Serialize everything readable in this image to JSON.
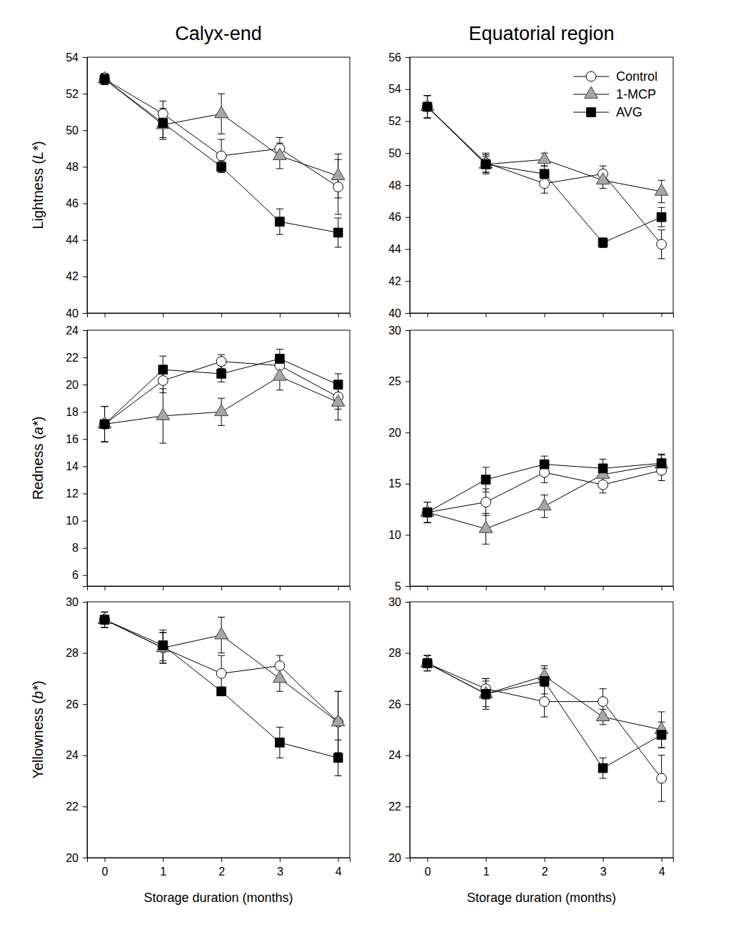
{
  "chart_data": [
    {
      "type": "line",
      "title": "Calyx-end",
      "y_label": "Lightness (L*)",
      "x": [
        0,
        1,
        2,
        3,
        4
      ],
      "xlim": [
        -0.3,
        4.2
      ],
      "xticks": [
        0,
        1,
        2,
        3,
        4
      ],
      "ylim": [
        40,
        54
      ],
      "yticks": [
        40,
        42,
        44,
        46,
        48,
        50,
        52,
        54
      ],
      "tick_labels": "y",
      "series": [
        {
          "name": "Control",
          "color": "#ffffff",
          "marker": "circle",
          "values": [
            52.8,
            50.9,
            48.6,
            49.0,
            46.9
          ],
          "errors": [
            0.3,
            0.7,
            0.9,
            0.6,
            1.5
          ]
        },
        {
          "name": "1-MCP",
          "color": "#a6a6a6",
          "marker": "triangle",
          "values": [
            52.8,
            50.3,
            50.9,
            48.6,
            47.5
          ],
          "errors": [
            0.3,
            0.8,
            1.1,
            0.7,
            1.2
          ]
        },
        {
          "name": "AVG",
          "color": "#000000",
          "marker": "square",
          "values": [
            52.8,
            50.4,
            48.0,
            45.0,
            44.4
          ],
          "errors": [
            0.3,
            0.8,
            0.3,
            0.7,
            0.8
          ]
        }
      ]
    },
    {
      "type": "line",
      "title": "Equatorial region",
      "legend": "upper right",
      "x": [
        0,
        1,
        2,
        3,
        4
      ],
      "xlim": [
        -0.3,
        4.2
      ],
      "xticks": [
        0,
        1,
        2,
        3,
        4
      ],
      "ylim": [
        40,
        56
      ],
      "yticks": [
        40,
        42,
        44,
        46,
        48,
        50,
        52,
        54,
        56
      ],
      "tick_labels": "y",
      "series": [
        {
          "name": "Control",
          "color": "#ffffff",
          "marker": "circle",
          "values": [
            52.9,
            49.4,
            48.1,
            48.7,
            44.3
          ],
          "errors": [
            0.7,
            0.6,
            0.6,
            0.5,
            0.9
          ]
        },
        {
          "name": "1-MCP",
          "color": "#a6a6a6",
          "marker": "triangle",
          "values": [
            52.9,
            49.3,
            49.6,
            48.3,
            47.6
          ],
          "errors": [
            0.7,
            0.5,
            0.4,
            0.5,
            0.7
          ]
        },
        {
          "name": "AVG",
          "color": "#000000",
          "marker": "square",
          "values": [
            52.9,
            49.3,
            48.7,
            44.4,
            46.0
          ],
          "errors": [
            0.7,
            0.6,
            0.5,
            0.3,
            0.6
          ]
        }
      ]
    },
    {
      "type": "line",
      "y_label": "Redness (a*)",
      "x": [
        0,
        1,
        2,
        3,
        4
      ],
      "xlim": [
        -0.3,
        4.2
      ],
      "xticks": [
        0,
        1,
        2,
        3,
        4
      ],
      "ylim": [
        5.2,
        24
      ],
      "yticks": [
        6,
        8,
        10,
        12,
        14,
        16,
        18,
        20,
        22,
        24
      ],
      "tick_labels": "y",
      "series": [
        {
          "name": "Control",
          "color": "#ffffff",
          "marker": "circle",
          "values": [
            17.1,
            20.3,
            21.7,
            21.4,
            19.1
          ],
          "errors": [
            1.3,
            0.9,
            0.5,
            0.8,
            0.9
          ]
        },
        {
          "name": "1-MCP",
          "color": "#a6a6a6",
          "marker": "triangle",
          "values": [
            17.1,
            17.7,
            18.0,
            20.6,
            18.7
          ],
          "errors": [
            1.3,
            2.0,
            1.0,
            1.0,
            1.3
          ]
        },
        {
          "name": "AVG",
          "color": "#000000",
          "marker": "square",
          "values": [
            17.1,
            21.1,
            20.8,
            21.9,
            20.0
          ],
          "errors": [
            1.3,
            1.0,
            0.6,
            0.7,
            0.8
          ]
        }
      ]
    },
    {
      "type": "line",
      "x": [
        0,
        1,
        2,
        3,
        4
      ],
      "xlim": [
        -0.3,
        4.2
      ],
      "xticks": [
        0,
        1,
        2,
        3,
        4
      ],
      "ylim": [
        5,
        30
      ],
      "yticks": [
        5,
        10,
        15,
        20,
        25,
        30
      ],
      "tick_labels": "y",
      "series": [
        {
          "name": "Control",
          "color": "#ffffff",
          "marker": "circle",
          "values": [
            12.2,
            13.2,
            16.1,
            14.9,
            16.3
          ],
          "errors": [
            1.0,
            1.3,
            1.0,
            0.8,
            1.0
          ]
        },
        {
          "name": "1-MCP",
          "color": "#a6a6a6",
          "marker": "triangle",
          "values": [
            12.2,
            10.6,
            12.8,
            15.9,
            16.9
          ],
          "errors": [
            1.0,
            1.5,
            1.1,
            0.8,
            0.9
          ]
        },
        {
          "name": "AVG",
          "color": "#000000",
          "marker": "square",
          "values": [
            12.2,
            15.4,
            16.9,
            16.5,
            17.0
          ],
          "errors": [
            1.0,
            1.2,
            0.8,
            0.9,
            0.9
          ]
        }
      ]
    },
    {
      "type": "line",
      "y_label": "Yellowness (b*)",
      "x_label": "Storage duration (months)",
      "x": [
        0,
        1,
        2,
        3,
        4
      ],
      "xlim": [
        -0.3,
        4.2
      ],
      "xticks": [
        0,
        1,
        2,
        3,
        4
      ],
      "ylim": [
        20,
        30
      ],
      "yticks": [
        20,
        22,
        24,
        26,
        28,
        30
      ],
      "series": [
        {
          "name": "Control",
          "color": "#ffffff",
          "marker": "circle",
          "values": [
            29.3,
            28.2,
            27.2,
            27.5,
            25.3
          ],
          "errors": [
            0.3,
            0.6,
            0.7,
            0.4,
            1.2
          ]
        },
        {
          "name": "1-MCP",
          "color": "#a6a6a6",
          "marker": "triangle",
          "values": [
            29.3,
            28.2,
            28.7,
            27.0,
            25.3
          ],
          "errors": [
            0.3,
            0.6,
            0.7,
            0.5,
            1.2
          ]
        },
        {
          "name": "AVG",
          "color": "#000000",
          "marker": "square",
          "values": [
            29.3,
            28.3,
            26.5,
            24.5,
            23.9
          ],
          "errors": [
            0.3,
            0.6,
            0.1,
            0.6,
            0.7
          ]
        }
      ]
    },
    {
      "type": "line",
      "x_label": "Storage duration (months)",
      "x": [
        0,
        1,
        2,
        3,
        4
      ],
      "xlim": [
        -0.3,
        4.2
      ],
      "xticks": [
        0,
        1,
        2,
        3,
        4
      ],
      "ylim": [
        20,
        30
      ],
      "yticks": [
        20,
        22,
        24,
        26,
        28,
        30
      ],
      "series": [
        {
          "name": "Control",
          "color": "#ffffff",
          "marker": "circle",
          "values": [
            27.6,
            26.6,
            26.1,
            26.1,
            23.1
          ],
          "errors": [
            0.3,
            0.4,
            0.6,
            0.5,
            0.9
          ]
        },
        {
          "name": "1-MCP",
          "color": "#a6a6a6",
          "marker": "triangle",
          "values": [
            27.6,
            26.4,
            27.1,
            25.5,
            25.0
          ],
          "errors": [
            0.3,
            0.5,
            0.4,
            0.3,
            0.7
          ]
        },
        {
          "name": "AVG",
          "color": "#000000",
          "marker": "square",
          "values": [
            27.6,
            26.4,
            26.9,
            23.5,
            24.8
          ],
          "errors": [
            0.3,
            0.6,
            0.5,
            0.4,
            0.5
          ]
        }
      ]
    }
  ]
}
